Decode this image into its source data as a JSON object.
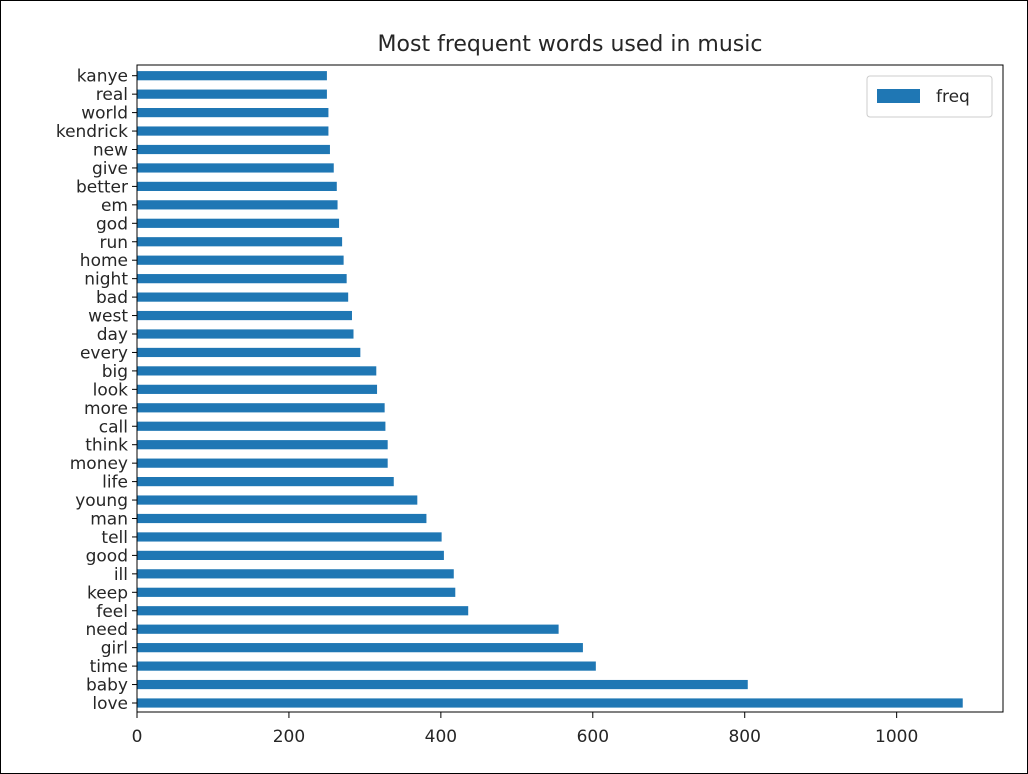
{
  "chart_data": {
    "type": "bar",
    "orientation": "horizontal",
    "title": "Most frequent words used in music",
    "xlabel": "",
    "ylabel": "",
    "xlim": [
      0,
      1140
    ],
    "xticks": [
      0,
      200,
      400,
      600,
      800,
      1000
    ],
    "grid": false,
    "legend_position": "top-right",
    "color": "#1f77b4",
    "categories": [
      "love",
      "baby",
      "time",
      "girl",
      "need",
      "feel",
      "keep",
      "ill",
      "good",
      "tell",
      "man",
      "young",
      "life",
      "money",
      "think",
      "call",
      "more",
      "look",
      "big",
      "every",
      "day",
      "west",
      "bad",
      "night",
      "home",
      "run",
      "god",
      "em",
      "better",
      "give",
      "new",
      "kendrick",
      "world",
      "real",
      "kanye"
    ],
    "series": [
      {
        "name": "freq",
        "values": [
          1087,
          804,
          604,
          587,
          555,
          436,
          419,
          417,
          404,
          401,
          381,
          369,
          338,
          330,
          330,
          327,
          326,
          316,
          315,
          294,
          285,
          283,
          278,
          276,
          272,
          270,
          266,
          264,
          263,
          259,
          254,
          252,
          252,
          250,
          250
        ]
      }
    ]
  }
}
